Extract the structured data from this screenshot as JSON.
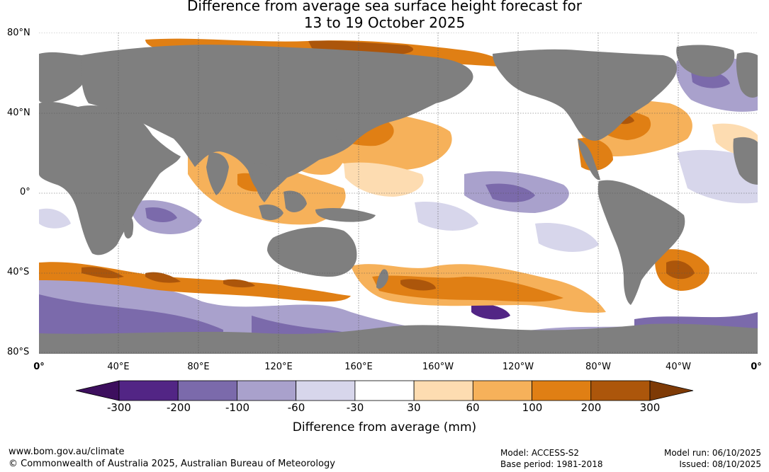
{
  "title": {
    "line1": "Difference from average sea surface height forecast for",
    "line2": "13 to 19 October 2025"
  },
  "latitude_labels": [
    "80°N",
    "40°N",
    "0°",
    "40°S",
    "80°S"
  ],
  "longitude_labels": [
    "0°",
    "40°E",
    "80°E",
    "120°E",
    "160°E",
    "160°W",
    "120°W",
    "80°W",
    "40°W",
    "0°"
  ],
  "legend": {
    "title": "Difference from average (mm)",
    "ticks": [
      "-300",
      "-200",
      "-100",
      "-60",
      "-30",
      "30",
      "60",
      "100",
      "200",
      "300"
    ],
    "colors": [
      "#3d0f5e",
      "#522585",
      "#7b6aab",
      "#a9a1cc",
      "#d7d6eb",
      "#ffffff",
      "#fddcb1",
      "#f6b15a",
      "#e07f14",
      "#ac560b",
      "#7e3a06"
    ]
  },
  "colors": {
    "land": "#7f7f7f",
    "ocean_neutral": "#ffffff"
  },
  "footer": {
    "url": "www.bom.gov.au/climate",
    "copyright": "© Commonwealth of Australia 2025, Australian Bureau of Meteorology",
    "model": "Model: ACCESS-S2",
    "base_period": "Base period: 1981-2018",
    "model_run": "Model run: 06/10/2025",
    "issued": "Issued: 08/10/2025"
  }
}
